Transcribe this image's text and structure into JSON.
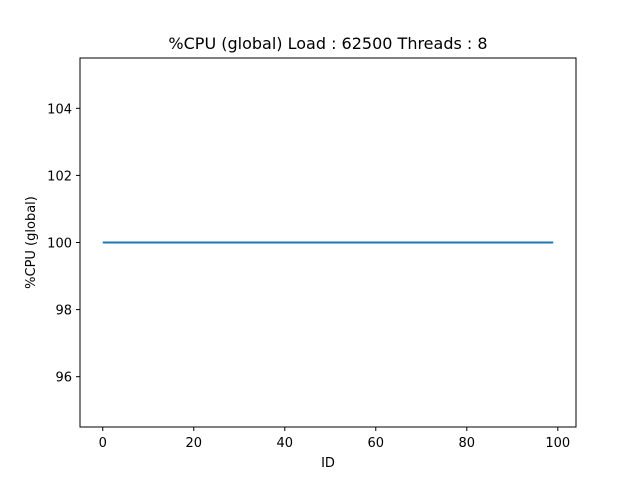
{
  "chart_data": {
    "type": "line",
    "title": "%CPU (global) Load : 62500 Threads : 8",
    "xlabel": "ID",
    "ylabel": "%CPU (global)",
    "xlim": [
      -5,
      104
    ],
    "ylim": [
      94.5,
      105.5
    ],
    "xticks": [
      0,
      20,
      40,
      60,
      80,
      100
    ],
    "yticks": [
      96,
      98,
      100,
      102,
      104
    ],
    "grid": false,
    "series": [
      {
        "color": "#1f77b4",
        "x": [
          0,
          99
        ],
        "y": [
          100,
          100
        ]
      }
    ]
  }
}
